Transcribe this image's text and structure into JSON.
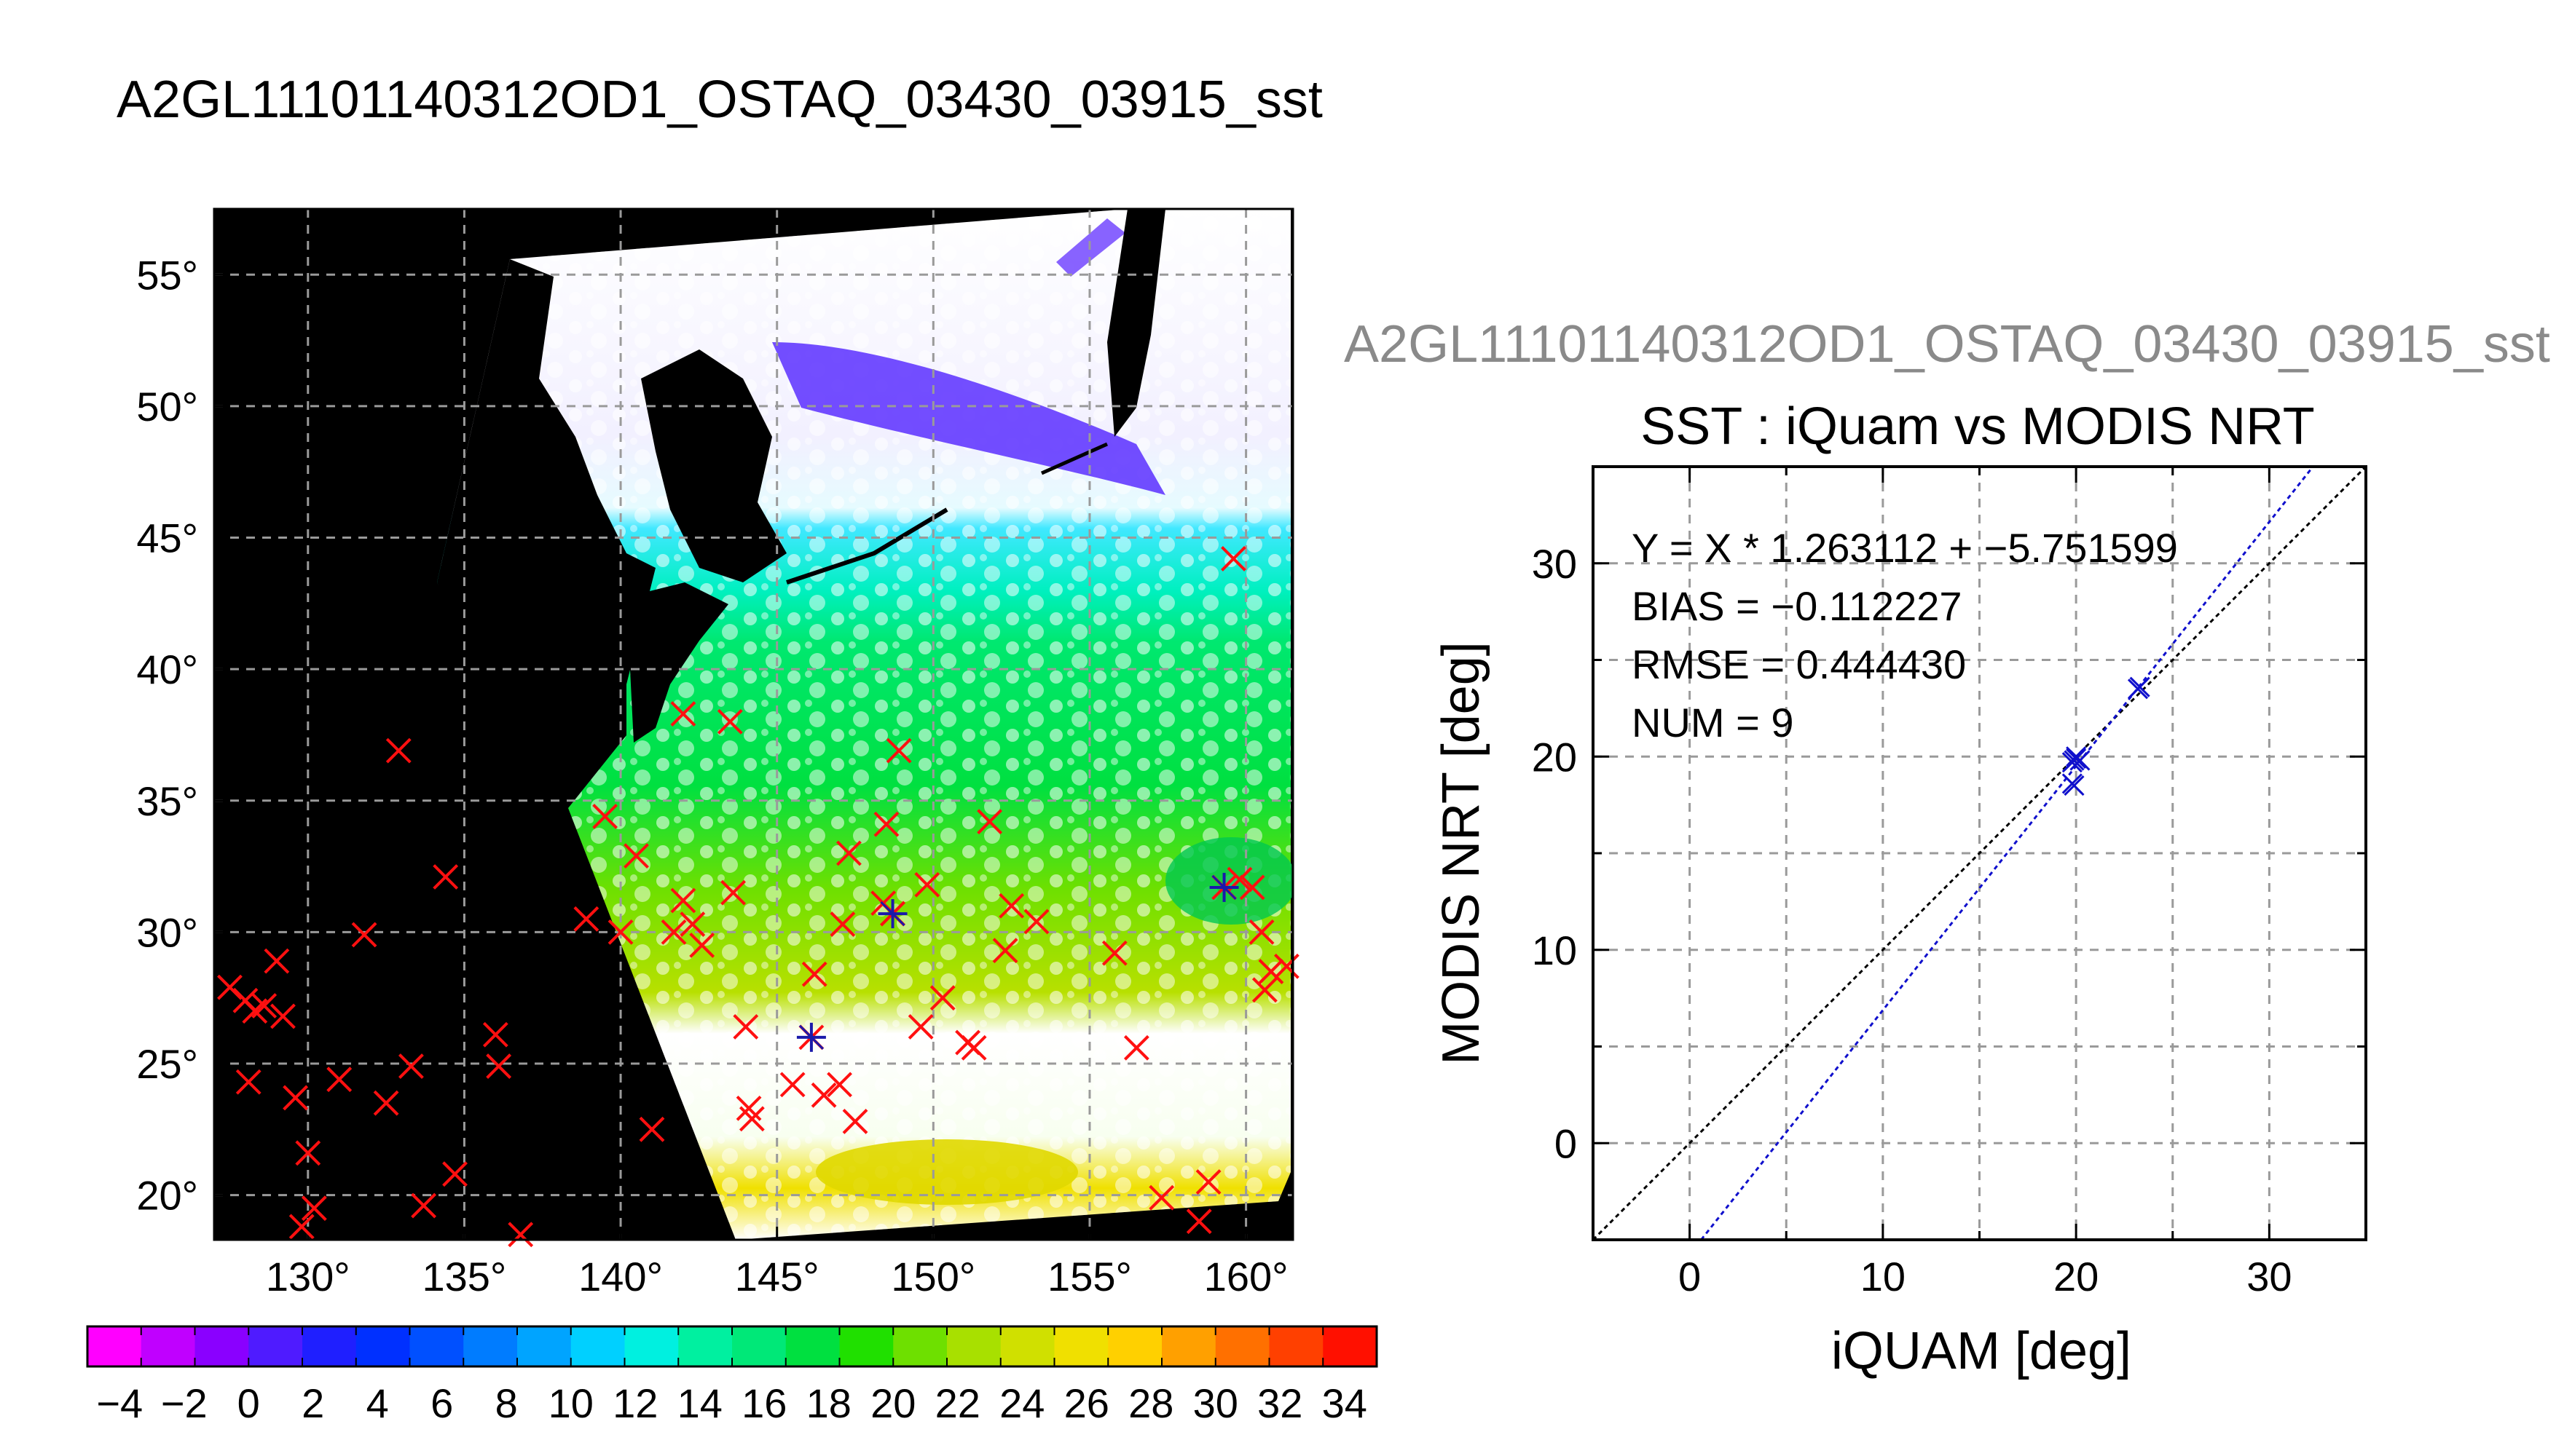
{
  "page": {
    "title": "A2GL11101140312OD1_OSTAQ_03430_03915_sst",
    "right_title": "A2GL11101140312OD1_OSTAQ_03430_03915_sst"
  },
  "chart_data": [
    {
      "type": "heatmap",
      "title": "",
      "xlabel": "",
      "ylabel": "",
      "lon_range": [
        127,
        161.5
      ],
      "lat_range": [
        18.3,
        57.5
      ],
      "x_ticks": [
        "130°",
        "135°",
        "140°",
        "145°",
        "150°",
        "155°",
        "160°"
      ],
      "x_tick_values": [
        130,
        135,
        140,
        145,
        150,
        155,
        160
      ],
      "y_ticks": [
        "20°",
        "25°",
        "30°",
        "35°",
        "40°",
        "45°",
        "50°",
        "55°"
      ],
      "y_tick_values": [
        20,
        25,
        30,
        35,
        40,
        45,
        50,
        55
      ],
      "grid": true,
      "background_color": "#000000",
      "swath_color": "#ffffff",
      "colorbar": {
        "range": [
          -5,
          35
        ],
        "ticks": [
          "−4",
          "−2",
          "0",
          "2",
          "4",
          "6",
          "8",
          "10",
          "12",
          "14",
          "16",
          "18",
          "20",
          "22",
          "24",
          "26",
          "28",
          "30",
          "32",
          "34"
        ],
        "tick_values": [
          -4,
          -2,
          0,
          2,
          4,
          6,
          8,
          10,
          12,
          14,
          16,
          18,
          20,
          22,
          24,
          26,
          28,
          30,
          32,
          34
        ],
        "colors": [
          "#ff00ff",
          "#c000ff",
          "#8a00ff",
          "#4f1bff",
          "#1f1fff",
          "#0030ff",
          "#0050ff",
          "#007cff",
          "#00a4ff",
          "#00d0ff",
          "#00f0e0",
          "#00f0a0",
          "#00e878",
          "#00e040",
          "#20e000",
          "#6ee000",
          "#a8e000",
          "#d0e000",
          "#f0e000",
          "#ffd000",
          "#ffa000",
          "#ff7000",
          "#ff4000",
          "#ff1000"
        ]
      },
      "iquam_points_red": [
        [
          127.5,
          27.9
        ],
        [
          128.0,
          27.4
        ],
        [
          128.3,
          27.0
        ],
        [
          128.6,
          27.2
        ],
        [
          128.1,
          24.3
        ],
        [
          129.0,
          28.9
        ],
        [
          129.2,
          26.8
        ],
        [
          129.6,
          23.7
        ],
        [
          130.0,
          21.6
        ],
        [
          130.2,
          19.5
        ],
        [
          129.8,
          18.8
        ],
        [
          131.0,
          24.4
        ],
        [
          131.8,
          29.9
        ],
        [
          132.5,
          23.5
        ],
        [
          133.3,
          24.9
        ],
        [
          133.7,
          19.6
        ],
        [
          132.9,
          36.9
        ],
        [
          134.4,
          32.1
        ],
        [
          134.7,
          20.8
        ],
        [
          136.0,
          26.1
        ],
        [
          136.1,
          24.9
        ],
        [
          136.8,
          18.5
        ],
        [
          138.9,
          30.5
        ],
        [
          139.5,
          34.4
        ],
        [
          140.0,
          30.0
        ],
        [
          140.5,
          32.9
        ],
        [
          141.0,
          22.5
        ],
        [
          141.7,
          30.0
        ],
        [
          142.0,
          31.2
        ],
        [
          142.3,
          30.3
        ],
        [
          142.6,
          29.5
        ],
        [
          143.6,
          31.5
        ],
        [
          142.0,
          38.3
        ],
        [
          143.5,
          38.0
        ],
        [
          144.0,
          26.4
        ],
        [
          145.5,
          24.2
        ],
        [
          146.2,
          28.4
        ],
        [
          146.5,
          23.8
        ],
        [
          147.0,
          24.2
        ],
        [
          147.3,
          33.0
        ],
        [
          147.1,
          30.3
        ],
        [
          147.5,
          22.8
        ],
        [
          148.4,
          31.1
        ],
        [
          148.7,
          30.7
        ],
        [
          148.9,
          36.9
        ],
        [
          148.5,
          34.1
        ],
        [
          149.8,
          31.8
        ],
        [
          149.6,
          26.4
        ],
        [
          150.3,
          27.5
        ],
        [
          151.3,
          25.6
        ],
        [
          151.1,
          25.8
        ],
        [
          151.8,
          34.2
        ],
        [
          152.3,
          29.3
        ],
        [
          152.5,
          31.0
        ],
        [
          153.3,
          30.4
        ],
        [
          155.8,
          29.2
        ],
        [
          156.5,
          25.6
        ],
        [
          157.3,
          19.9
        ],
        [
          158.5,
          19.0
        ],
        [
          158.8,
          20.5
        ],
        [
          159.6,
          44.2
        ],
        [
          160.2,
          31.7
        ],
        [
          160.5,
          30.0
        ],
        [
          160.8,
          28.5
        ],
        [
          160.6,
          27.8
        ],
        [
          161.3,
          28.7
        ],
        [
          159.8,
          32.0
        ],
        [
          144.1,
          23.3
        ],
        [
          144.2,
          22.9
        ]
      ],
      "iquam_points_blue": [
        [
          146.1,
          26.0
        ],
        [
          148.7,
          30.7
        ],
        [
          159.3,
          31.7
        ]
      ]
    },
    {
      "type": "scatter",
      "title": "SST : iQuam vs MODIS NRT",
      "xlabel": "iQUAM [deg]",
      "ylabel": "MODIS NRT [deg]",
      "xlim": [
        -5,
        35
      ],
      "ylim": [
        -5,
        35
      ],
      "x_ticks": [
        "0",
        "10",
        "20",
        "30"
      ],
      "x_tick_values": [
        0,
        10,
        20,
        30
      ],
      "y_ticks": [
        "0",
        "10",
        "20",
        "30"
      ],
      "y_tick_values": [
        0,
        10,
        20,
        30
      ],
      "grid": true,
      "annotations": [
        "Y = X * 1.263112 + −5.751599",
        "BIAS = −0.112227",
        "RMSE = 0.444430",
        "NUM = 9"
      ],
      "fit": {
        "slope": 1.263112,
        "intercept": -5.751599
      },
      "series": [
        {
          "x": [
            19.8,
            20.0,
            20.2,
            19.9,
            19.8,
            23.2,
            23.3,
            20.0,
            19.9
          ],
          "y": [
            19.7,
            20.0,
            19.8,
            18.5,
            18.6,
            23.5,
            23.6,
            19.9,
            19.8
          ]
        }
      ]
    }
  ]
}
